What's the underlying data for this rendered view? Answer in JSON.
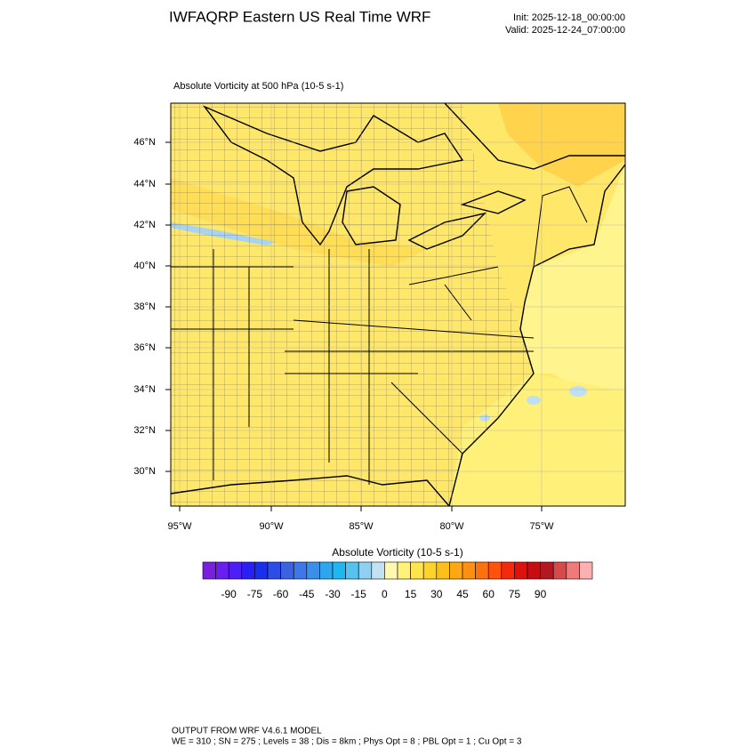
{
  "header": {
    "title": "IWFAQRP Eastern US Real Time WRF",
    "init": "Init: 2025-12-18_00:00:00",
    "valid": "Valid: 2025-12-24_07:00:00"
  },
  "map": {
    "subtitle": "Absolute Vorticity at 500 hPa   (10-5 s-1)",
    "lat_labels": [
      "46°N",
      "44°N",
      "42°N",
      "40°N",
      "38°N",
      "36°N",
      "34°N",
      "32°N",
      "30°N"
    ],
    "lon_labels": [
      "95°W",
      "90°W",
      "85°W",
      "80°W",
      "75°W"
    ]
  },
  "colorbar": {
    "title": "Absolute Vorticity  (10-5 s-1)",
    "colors": [
      "#7a1fe0",
      "#6a1ff0",
      "#4b1ff5",
      "#2a1ff5",
      "#1a2ef0",
      "#2b4de8",
      "#3b62e0",
      "#3d78e6",
      "#3b8fe8",
      "#2ea6ee",
      "#1fb6f2",
      "#55c2f0",
      "#8fd0f0",
      "#c2e2f4",
      "#fff9b0",
      "#fff27a",
      "#ffe44d",
      "#ffd42a",
      "#ffbf1a",
      "#ffa814",
      "#ff8f0f",
      "#ff710d",
      "#ff520d",
      "#f52a0d",
      "#e0100d",
      "#c80d12",
      "#b31822",
      "#d84a4a",
      "#f07a7a",
      "#ffb0b0"
    ],
    "ticks": [
      "-90",
      "-75",
      "-60",
      "-45",
      "-30",
      "-15",
      "0",
      "15",
      "30",
      "45",
      "60",
      "75",
      "90"
    ]
  },
  "footer": {
    "line1": "OUTPUT FROM WRF V4.6.1 MODEL",
    "line2": "WE = 310 ; SN = 275 ; Levels = 38 ; Dis = 8km ; Phys Opt = 8 ; PBL Opt = 1 ; Cu Opt = 3"
  }
}
